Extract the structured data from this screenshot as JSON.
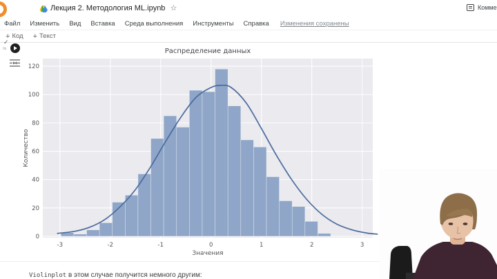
{
  "header": {
    "title": "Лекция 2. Методология ML.ipynb",
    "star_icon": "☆",
    "comment_label": "Комментарий",
    "menu": [
      "Файл",
      "Изменить",
      "Вид",
      "Вставка",
      "Среда выполнения",
      "Инструменты",
      "Справка"
    ],
    "save_status": "Изменения сохранены"
  },
  "toolbar": {
    "add_code_label": "Код",
    "add_text_label": "Текст",
    "plus_icon": "+"
  },
  "cell": {
    "exec_check_icon": "✓",
    "exec_time": "0s"
  },
  "chart_data": {
    "type": "bar",
    "subtype": "histogram-with-kde",
    "title": "Распределение данных",
    "xlabel": "Значения",
    "ylabel": "Количество",
    "x_ticks": [
      -3,
      -2,
      -1,
      0,
      1,
      2,
      3
    ],
    "y_ticks": [
      0,
      20,
      40,
      60,
      80,
      100,
      120
    ],
    "xlim": [
      -3.34,
      3.21
    ],
    "ylim": [
      -1,
      125.4
    ],
    "grid": true,
    "legend": "none",
    "bin_start": -2.98,
    "bin_width": 0.255,
    "bar_values": [
      2.5,
      1.5,
      4.5,
      9.5,
      24,
      29,
      44,
      69,
      85,
      77,
      103,
      102,
      118,
      92,
      68,
      63,
      42,
      25,
      21,
      10.5,
      2
    ],
    "kde": {
      "x": [
        -3.05,
        -2.7,
        -2.4,
        -2.1,
        -1.8,
        -1.5,
        -1.2,
        -0.9,
        -0.6,
        -0.3,
        0.0,
        0.2,
        0.4,
        0.7,
        1.0,
        1.3,
        1.6,
        1.9,
        2.2,
        2.5,
        2.8,
        3.1,
        3.3
      ],
      "y": [
        2,
        3.5,
        6.5,
        12,
        21,
        33,
        49,
        67,
        84,
        98,
        105,
        106.5,
        105,
        94,
        76,
        57,
        40,
        26,
        15.5,
        8.5,
        4.5,
        2.2,
        1.5
      ]
    },
    "colors": {
      "bar": "#8fa6c8",
      "bar_edge": "rgba(255,255,255,0.55)",
      "line": "#4a6a9d",
      "plot_bg": "#eaeaef",
      "grid": "#ffffff",
      "tick_text": "#555555",
      "title_text": "#454545"
    }
  },
  "below_cell": {
    "code_word": "Violinplot",
    "text": " в этом случае получится немного другим:"
  },
  "webcam": {
    "description_colors": {
      "background": "#fdfdfd",
      "sweater": "#3f2531",
      "hair": "#8d6e49",
      "skin": "#e8c2a6",
      "chair": "#1b1b1b",
      "desk": "#2b2b2b"
    }
  }
}
